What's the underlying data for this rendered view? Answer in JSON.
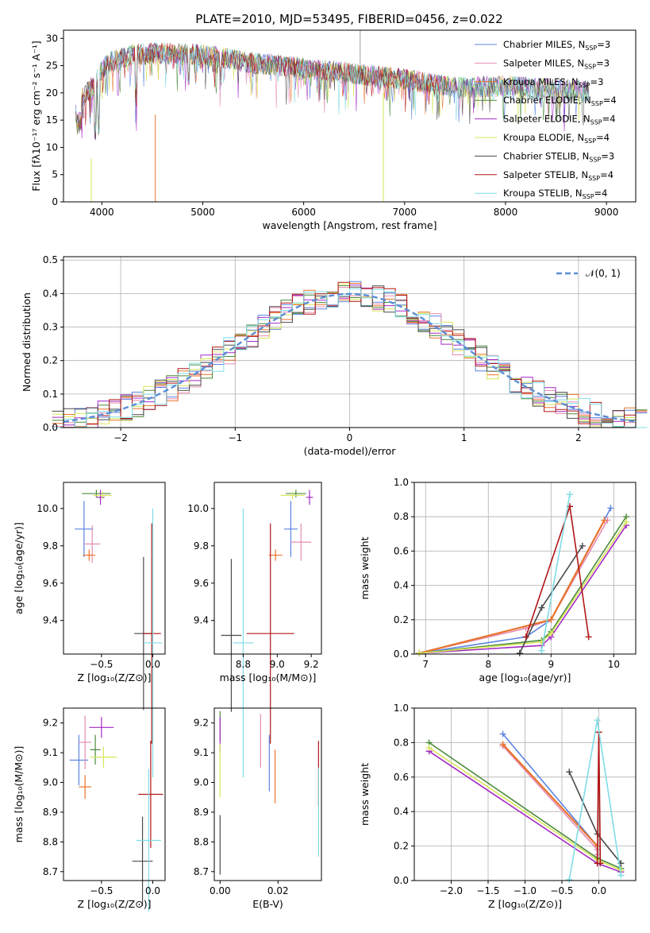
{
  "figure_title": "PLATE=2010, MJD=53495, FIBERID=0456, z=0.022",
  "models": [
    {
      "name": "Chabrier MILES",
      "nssp": "3",
      "color": "#5b84e0"
    },
    {
      "name": "Salpeter MILES",
      "nssp": "3",
      "color": "#e58cb4"
    },
    {
      "name": "Kroupa MILES",
      "nssp": "3",
      "color": "#e8732c"
    },
    {
      "name": "Chabrier ELODIE",
      "nssp": "4",
      "color": "#4a8a3c"
    },
    {
      "name": "Salpeter ELODIE",
      "nssp": "4",
      "color": "#a32bc4"
    },
    {
      "name": "Kroupa ELODIE",
      "nssp": "4",
      "color": "#d8e65a"
    },
    {
      "name": "Chabrier STELIB",
      "nssp": "3",
      "color": "#4a4a4a"
    },
    {
      "name": "Salpeter STELIB",
      "nssp": "4",
      "color": "#b01616"
    },
    {
      "name": "Kroupa STELIB",
      "nssp": "4",
      "color": "#7fdce6"
    }
  ],
  "nssp_prefix": "N",
  "nssp_sub": "SSP",
  "chart_data": [
    {
      "id": "spectrum",
      "type": "line",
      "xlabel": "wavelength [Angstrom, rest frame]",
      "ylabel": "Flux [fλ10⁻¹⁷ erg cm⁻² s⁻¹ A⁻¹]",
      "xlim": [
        3620,
        9290
      ],
      "ylim": [
        0,
        31.5
      ],
      "xticks": [
        4000,
        5000,
        6000,
        7000,
        8000,
        9000
      ],
      "yticks": [
        0,
        5,
        10,
        15,
        20,
        25,
        30
      ],
      "grid": false,
      "legend": "top-right",
      "continuum": {
        "x": [
          3750,
          3900,
          4050,
          4300,
          4600,
          5000,
          5500,
          6000,
          6500,
          7000,
          7500,
          8000,
          8500,
          8800
        ],
        "y": [
          18,
          21,
          25.5,
          27,
          27.3,
          27,
          25.5,
          24.5,
          23.5,
          22.5,
          21,
          21.3,
          20.6,
          20.3
        ]
      }
    },
    {
      "id": "residuals",
      "type": "bar",
      "xlabel": "(data-model)/error",
      "ylabel": "Normed distribution",
      "xlim": [
        -2.5,
        2.5
      ],
      "ylim": [
        0,
        0.51
      ],
      "xticks": [
        -2,
        -1,
        0,
        1,
        2
      ],
      "yticks": [
        0.0,
        0.1,
        0.2,
        0.3,
        0.4,
        0.5
      ],
      "grid": true,
      "legend": "top-right",
      "reference_label": "𝒩(0, 1)",
      "reference": {
        "type": "gaussian",
        "mean": 0,
        "sigma": 1
      }
    },
    {
      "id": "age-Z",
      "type": "scatter",
      "xlabel": "Z [log₁₀(Z/Z⊙)]",
      "ylabel": "age  [log₁₀(age/yr)]",
      "xlim": [
        -0.87,
        0.12
      ],
      "ylim": [
        9.22,
        10.14
      ],
      "xticks": [
        -0.5,
        0.0
      ],
      "yticks": [
        9.4,
        9.6,
        9.8,
        10.0
      ],
      "grid": false,
      "points": [
        {
          "x": -0.67,
          "y": 9.89,
          "xerr": 0.09,
          "yerr": 0.15
        },
        {
          "x": -0.59,
          "y": 9.81,
          "xerr": 0.08,
          "yerr": 0.1
        },
        {
          "x": -0.62,
          "y": 9.75,
          "xerr": 0.06,
          "yerr": 0.03
        },
        {
          "x": -0.55,
          "y": 10.08,
          "xerr": 0.14,
          "yerr": 0.02
        },
        {
          "x": -0.51,
          "y": 10.06,
          "xerr": 0.04,
          "yerr": 0.04
        },
        {
          "x": -0.49,
          "y": 10.07,
          "xerr": 0.09,
          "yerr": 0.02
        },
        {
          "x": -0.09,
          "y": 9.33,
          "xerr": 0.09,
          "yerr": 0.41
        },
        {
          "x": -0.01,
          "y": 9.33,
          "xerr": 0.09,
          "yerr": 0.59
        },
        {
          "x": 0.0,
          "y": 9.28,
          "xerr": 0.09,
          "yerr": 0.72
        }
      ]
    },
    {
      "id": "age-mass",
      "type": "scatter",
      "xlabel": "mass [log₁₀(M/M⊙)]",
      "ylabel": "",
      "xlim": [
        8.63,
        9.26
      ],
      "ylim": [
        9.22,
        10.14
      ],
      "xticks": [
        8.8,
        9.0,
        9.2
      ],
      "yticks": [
        9.4,
        9.6,
        9.8,
        10.0
      ],
      "grid": false,
      "points": [
        {
          "x": 9.08,
          "y": 9.89,
          "xerr": 0.04,
          "yerr": 0.15
        },
        {
          "x": 9.14,
          "y": 9.82,
          "xerr": 0.06,
          "yerr": 0.1
        },
        {
          "x": 8.99,
          "y": 9.75,
          "xerr": 0.04,
          "yerr": 0.03
        },
        {
          "x": 9.11,
          "y": 10.08,
          "xerr": 0.06,
          "yerr": 0.02
        },
        {
          "x": 9.19,
          "y": 10.06,
          "xerr": 0.02,
          "yerr": 0.04
        },
        {
          "x": 9.09,
          "y": 10.07,
          "xerr": 0.07,
          "yerr": 0.02
        },
        {
          "x": 8.73,
          "y": 9.32,
          "xerr": 0.06,
          "yerr": 0.41
        },
        {
          "x": 8.96,
          "y": 9.33,
          "xerr": 0.14,
          "yerr": 0.59
        },
        {
          "x": 8.8,
          "y": 9.28,
          "xerr": 0.06,
          "yerr": 0.72
        }
      ]
    },
    {
      "id": "weight-age",
      "type": "line",
      "xlabel": "age  [log₁₀(age/yr)]",
      "ylabel": "mass weight",
      "xlim": [
        6.82,
        10.35
      ],
      "ylim": [
        0,
        1.0
      ],
      "xticks": [
        7,
        8,
        9,
        10
      ],
      "yticks": [
        0.0,
        0.2,
        0.4,
        0.6,
        0.8,
        1.0
      ],
      "grid": true,
      "series": [
        {
          "x": [
            6.9,
            8.6,
            9.0,
            9.95
          ],
          "y": [
            0.005,
            0.1,
            0.2,
            0.85
          ]
        },
        {
          "x": [
            6.9,
            8.6,
            9.0,
            9.9
          ],
          "y": [
            0.005,
            0.15,
            0.2,
            0.78
          ]
        },
        {
          "x": [
            6.9,
            9.0,
            9.85
          ],
          "y": [
            0.005,
            0.2,
            0.78
          ]
        },
        {
          "x": [
            6.9,
            8.85,
            9.0,
            10.2
          ],
          "y": [
            0.005,
            0.08,
            0.13,
            0.8
          ]
        },
        {
          "x": [
            6.9,
            8.85,
            9.0,
            10.2
          ],
          "y": [
            0.005,
            0.05,
            0.1,
            0.75
          ]
        },
        {
          "x": [
            6.9,
            8.85,
            9.0,
            10.2
          ],
          "y": [
            0.005,
            0.07,
            0.12,
            0.77
          ]
        },
        {
          "x": [
            8.5,
            8.85,
            9.5
          ],
          "y": [
            0.005,
            0.27,
            0.63
          ]
        },
        {
          "x": [
            8.6,
            9.3,
            9.6
          ],
          "y": [
            0.1,
            0.86,
            0.1
          ]
        },
        {
          "x": [
            8.85,
            9.3
          ],
          "y": [
            0.02,
            0.93
          ]
        }
      ]
    },
    {
      "id": "mass-Z",
      "type": "scatter",
      "xlabel": "Z [log₁₀(Z/Z⊙)]",
      "ylabel": "mass [log₁₀(M/M⊙)]",
      "xlim": [
        -0.87,
        0.12
      ],
      "ylim": [
        8.67,
        9.25
      ],
      "xticks": [
        -0.5,
        0.0
      ],
      "yticks": [
        8.7,
        8.8,
        8.9,
        9.0,
        9.1,
        9.2
      ],
      "grid": false,
      "points": [
        {
          "x": -0.72,
          "y": 9.075,
          "xerr": 0.09,
          "yerr": 0.085
        },
        {
          "x": -0.66,
          "y": 9.135,
          "xerr": 0.06,
          "yerr": 0.09
        },
        {
          "x": -0.66,
          "y": 8.985,
          "xerr": 0.06,
          "yerr": 0.04
        },
        {
          "x": -0.56,
          "y": 9.11,
          "xerr": 0.05,
          "yerr": 0.05
        },
        {
          "x": -0.5,
          "y": 9.185,
          "xerr": 0.12,
          "yerr": 0.035
        },
        {
          "x": -0.48,
          "y": 9.085,
          "xerr": 0.13,
          "yerr": 0.035
        },
        {
          "x": -0.1,
          "y": 8.735,
          "xerr": 0.1,
          "yerr": 0.15
        },
        {
          "x": -0.02,
          "y": 8.96,
          "xerr": 0.12,
          "yerr": 0.18
        },
        {
          "x": -0.04,
          "y": 8.805,
          "xerr": 0.12,
          "yerr": 0.24
        }
      ]
    },
    {
      "id": "mass-ebv",
      "type": "scatter",
      "xlabel": "E(B-V)",
      "ylabel": "",
      "xlim": [
        -0.002,
        0.035
      ],
      "ylim": [
        8.67,
        9.25
      ],
      "xticks": [
        0.0,
        0.02
      ],
      "yticks": [
        8.7,
        8.8,
        8.9,
        9.0,
        9.1,
        9.2
      ],
      "grid": false,
      "points": [
        {
          "x": 0.017,
          "y": 9.065,
          "xerr": 0,
          "yerr": 0.095
        },
        {
          "x": 0.014,
          "y": 9.14,
          "xerr": 0,
          "yerr": 0.09
        },
        {
          "x": 0.019,
          "y": 9.02,
          "xerr": 0,
          "yerr": 0.09
        },
        {
          "x": 0.0,
          "y": 9.19,
          "xerr": 0,
          "yerr": 0.05
        },
        {
          "x": 0.0,
          "y": 9.16,
          "xerr": 0,
          "yerr": 0.06
        },
        {
          "x": 0.0,
          "y": 9.04,
          "xerr": 0,
          "yerr": 0.09
        },
        {
          "x": 0.0,
          "y": 8.79,
          "xerr": 0,
          "yerr": 0.1
        },
        {
          "x": 0.034,
          "y": 9.03,
          "xerr": 0,
          "yerr": 0.11
        },
        {
          "x": 0.034,
          "y": 8.9,
          "xerr": 0,
          "yerr": 0.15
        }
      ]
    },
    {
      "id": "weight-Z",
      "type": "line",
      "xlabel": "Z [log₁₀(Z/Z⊙)]",
      "ylabel": "mass weight",
      "xlim": [
        -2.5,
        0.5
      ],
      "ylim": [
        0,
        1.0
      ],
      "xticks": [
        -2.0,
        -1.5,
        -1.0,
        -0.5,
        0.0
      ],
      "yticks": [
        0.0,
        0.2,
        0.4,
        0.6,
        0.8,
        1.0
      ],
      "grid": true,
      "series": [
        {
          "x": [
            -1.3,
            -0.02,
            -0.02
          ],
          "y": [
            0.85,
            0.2,
            0.1
          ]
        },
        {
          "x": [
            -1.3,
            -0.02,
            -0.02
          ],
          "y": [
            0.78,
            0.18,
            0.15
          ]
        },
        {
          "x": [
            -1.3,
            -0.02
          ],
          "y": [
            0.79,
            0.2
          ]
        },
        {
          "x": [
            -2.3,
            -0.02,
            0.3
          ],
          "y": [
            0.8,
            0.13,
            0.07
          ]
        },
        {
          "x": [
            -2.3,
            -0.02,
            0.3
          ],
          "y": [
            0.75,
            0.1,
            0.05
          ]
        },
        {
          "x": [
            -2.3,
            -0.02,
            0.3
          ],
          "y": [
            0.77,
            0.12,
            0.06
          ]
        },
        {
          "x": [
            -0.4,
            -0.02,
            0.3
          ],
          "y": [
            0.63,
            0.27,
            0.1
          ]
        },
        {
          "x": [
            -0.02,
            0.0,
            0.02
          ],
          "y": [
            0.1,
            0.86,
            0.1
          ]
        },
        {
          "x": [
            -0.4,
            -0.02,
            0.3
          ],
          "y": [
            0.005,
            0.93,
            0.03
          ]
        }
      ]
    }
  ]
}
